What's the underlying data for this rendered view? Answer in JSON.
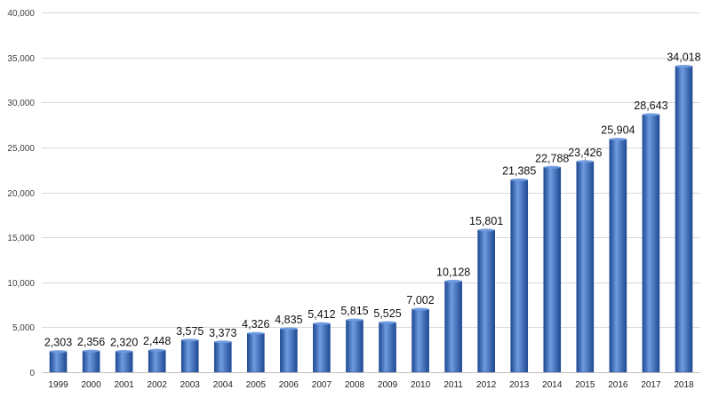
{
  "chart_data": {
    "type": "bar",
    "title": "",
    "xlabel": "",
    "ylabel": "",
    "categories": [
      "1999",
      "2000",
      "2001",
      "2002",
      "2003",
      "2004",
      "2005",
      "2006",
      "2007",
      "2008",
      "2009",
      "2010",
      "2011",
      "2012",
      "2013",
      "2014",
      "2015",
      "2016",
      "2017",
      "2018"
    ],
    "values": [
      2303,
      2356,
      2320,
      2448,
      3575,
      3373,
      4326,
      4835,
      5412,
      5815,
      5525,
      7002,
      10128,
      15801,
      21385,
      22788,
      23426,
      25904,
      28643,
      34018
    ],
    "value_labels": [
      "2,303",
      "2,356",
      "2,320",
      "2,448",
      "3,575",
      "3,373",
      "4,326",
      "4,835",
      "5,412",
      "5,815",
      "5,525",
      "7,002",
      "10,128",
      "15,801",
      "21,385",
      "22,788",
      "23,426",
      "25,904",
      "28,643",
      "34,018"
    ],
    "ylim": [
      0,
      40000
    ],
    "yticks": [
      0,
      5000,
      10000,
      15000,
      20000,
      25000,
      30000,
      35000,
      40000
    ],
    "ytick_labels": [
      "0",
      "5,000",
      "10,000",
      "15,000",
      "20,000",
      "25,000",
      "30,000",
      "35,000",
      "40,000"
    ],
    "grid": true,
    "legend": "none",
    "bar_color": "#3A6FC4",
    "bar_color_light": "#6F9BE0",
    "bar_color_dark": "#1F4A94",
    "grid_color": "#D9D9D9"
  }
}
